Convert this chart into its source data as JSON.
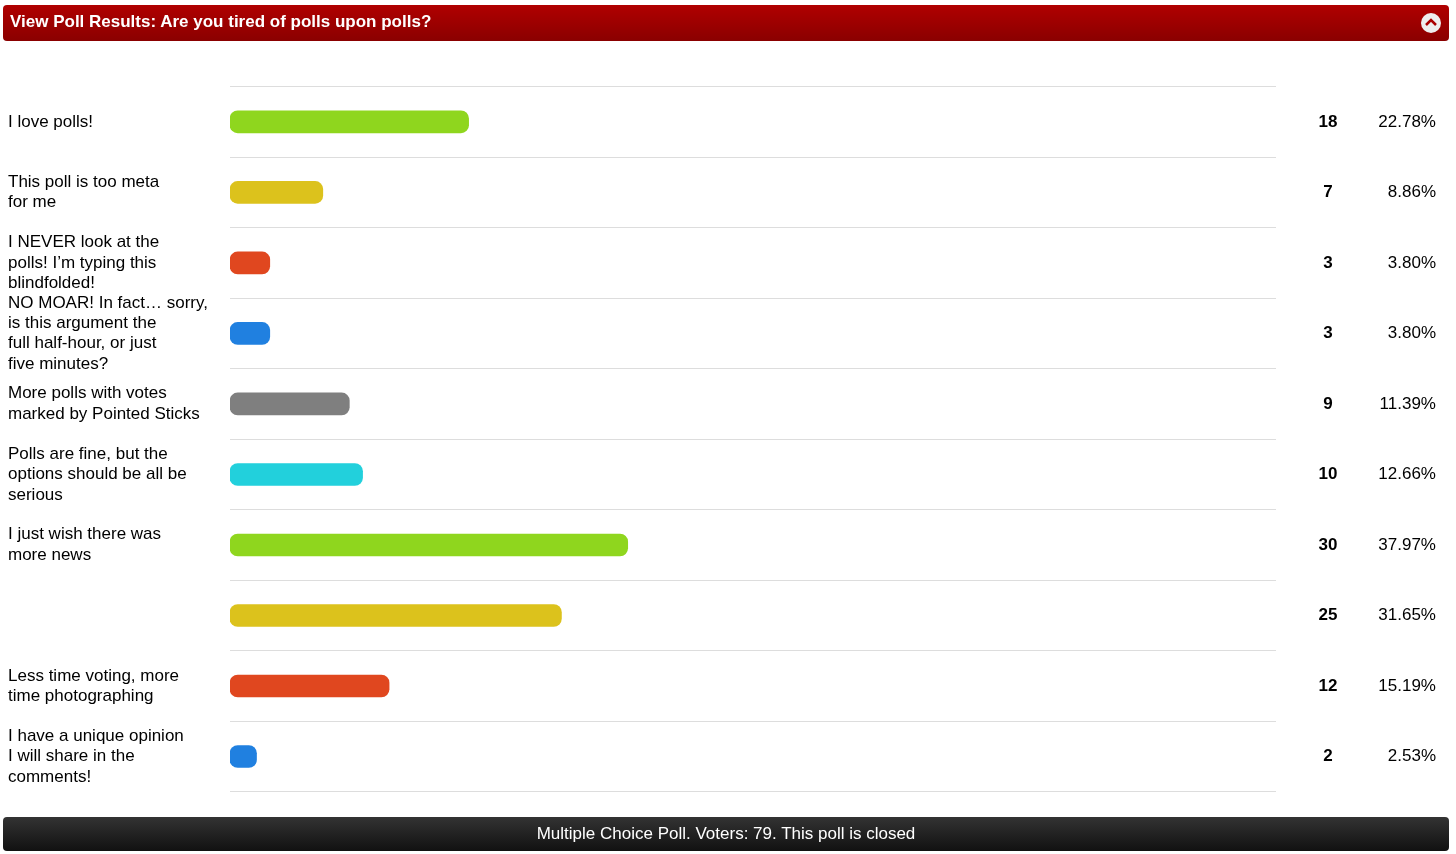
{
  "chart_data": {
    "type": "bar",
    "orientation": "horizontal",
    "title": "View Poll Results: Are you tired of polls upon polls?",
    "categories": [
      "I love polls!",
      "This poll is too meta for me",
      "I NEVER look at the polls! I’m typing this blindfolded!",
      "NO MOAR! In fact… sorry, is this argument the full half-hour, or just five minutes?",
      "More polls with votes marked by Pointed Sticks",
      "Polls are fine, but the options should be all be serious",
      "I just wish there was more news",
      null,
      "Less time voting, more time photographing",
      "I have a unique opinion I will share in the comments!"
    ],
    "values": [
      18,
      7,
      3,
      3,
      9,
      10,
      30,
      25,
      12,
      2
    ],
    "colors": [
      "#8fd61e",
      "#dcc21c",
      "#e0471f",
      "#2080e0",
      "#7f7f7f",
      "#22d0dc",
      "#8fd61e",
      "#dcc21c",
      "#e0471f",
      "#2080e0"
    ],
    "data_labels": true,
    "grid": "y",
    "legend": false,
    "annotations": [
      "22.78%",
      "8.86%",
      "3.80%",
      "3.80%",
      "11.39%",
      "12.66%",
      "37.97%",
      "31.65%",
      "15.19%",
      "2.53%",
      "Multiple Choice Poll. Voters: 79. This poll is closed"
    ]
  }
}
